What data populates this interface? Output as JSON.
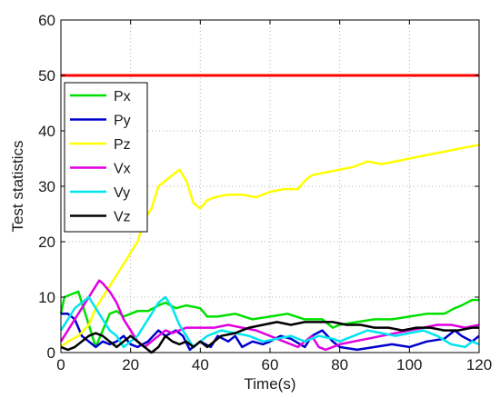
{
  "chart_data": {
    "type": "line",
    "title": "",
    "xlabel": "Time(s)",
    "ylabel": "Test statistics",
    "xlim": [
      0,
      120
    ],
    "ylim": [
      0,
      60
    ],
    "xticks": [
      "0",
      "20",
      "40",
      "60",
      "80",
      "100",
      "120"
    ],
    "yticks": [
      "0",
      "10",
      "20",
      "30",
      "40",
      "50",
      "60"
    ],
    "grid": true,
    "legend_position": "middle-left",
    "threshold": {
      "y": 50,
      "color": "#ff0000"
    },
    "series": [
      {
        "name": "Px",
        "color": "#00e000",
        "points": [
          [
            0,
            7
          ],
          [
            1,
            10
          ],
          [
            3,
            10.5
          ],
          [
            5,
            11
          ],
          [
            6,
            9
          ],
          [
            8,
            5
          ],
          [
            10,
            1
          ],
          [
            12,
            4
          ],
          [
            14,
            7
          ],
          [
            16,
            7.5
          ],
          [
            18,
            6.5
          ],
          [
            20,
            7
          ],
          [
            22,
            7.5
          ],
          [
            25,
            7.5
          ],
          [
            28,
            8.5
          ],
          [
            30,
            9
          ],
          [
            33,
            8
          ],
          [
            36,
            8.5
          ],
          [
            40,
            8
          ],
          [
            42,
            6.5
          ],
          [
            45,
            6.5
          ],
          [
            50,
            7
          ],
          [
            55,
            6
          ],
          [
            60,
            6.5
          ],
          [
            65,
            7
          ],
          [
            70,
            6
          ],
          [
            75,
            6
          ],
          [
            78,
            4.5
          ],
          [
            80,
            5
          ],
          [
            85,
            5.5
          ],
          [
            90,
            6
          ],
          [
            95,
            6
          ],
          [
            100,
            6.5
          ],
          [
            105,
            7
          ],
          [
            110,
            7
          ],
          [
            113,
            8
          ],
          [
            115,
            8.5
          ],
          [
            118,
            9.5
          ],
          [
            120,
            9.5
          ]
        ]
      },
      {
        "name": "Py",
        "color": "#0000cd",
        "points": [
          [
            0,
            7
          ],
          [
            2,
            7
          ],
          [
            4,
            6
          ],
          [
            6,
            3
          ],
          [
            8,
            2
          ],
          [
            10,
            1
          ],
          [
            12,
            2
          ],
          [
            14,
            1.5
          ],
          [
            16,
            2
          ],
          [
            18,
            3
          ],
          [
            20,
            1.5
          ],
          [
            22,
            1
          ],
          [
            25,
            2
          ],
          [
            28,
            4
          ],
          [
            30,
            3
          ],
          [
            33,
            4
          ],
          [
            35,
            3
          ],
          [
            37,
            0.5
          ],
          [
            40,
            2
          ],
          [
            43,
            1
          ],
          [
            45,
            3
          ],
          [
            48,
            2
          ],
          [
            50,
            3
          ],
          [
            52,
            1
          ],
          [
            55,
            2
          ],
          [
            58,
            1.5
          ],
          [
            60,
            2
          ],
          [
            63,
            3
          ],
          [
            66,
            2.5
          ],
          [
            70,
            1
          ],
          [
            72,
            3
          ],
          [
            75,
            4
          ],
          [
            78,
            2
          ],
          [
            80,
            1
          ],
          [
            85,
            0.5
          ],
          [
            90,
            1
          ],
          [
            95,
            1.5
          ],
          [
            100,
            1
          ],
          [
            105,
            2
          ],
          [
            110,
            2.5
          ],
          [
            113,
            4
          ],
          [
            115,
            3
          ],
          [
            118,
            2
          ],
          [
            120,
            3
          ]
        ]
      },
      {
        "name": "Pz",
        "color": "#ffff00",
        "points": [
          [
            0,
            1
          ],
          [
            2,
            2
          ],
          [
            5,
            3
          ],
          [
            8,
            5
          ],
          [
            10,
            8
          ],
          [
            12,
            10
          ],
          [
            14,
            12
          ],
          [
            16,
            14
          ],
          [
            18,
            16
          ],
          [
            20,
            18
          ],
          [
            22,
            20
          ],
          [
            24,
            24
          ],
          [
            26,
            26
          ],
          [
            28,
            30
          ],
          [
            30,
            31
          ],
          [
            32,
            32
          ],
          [
            34,
            33
          ],
          [
            36,
            31
          ],
          [
            38,
            27
          ],
          [
            40,
            26
          ],
          [
            42,
            27.5
          ],
          [
            44,
            28
          ],
          [
            48,
            28.5
          ],
          [
            52,
            28.5
          ],
          [
            56,
            28
          ],
          [
            60,
            29
          ],
          [
            64,
            29.5
          ],
          [
            68,
            29.5
          ],
          [
            70,
            31
          ],
          [
            72,
            32
          ],
          [
            76,
            32.5
          ],
          [
            80,
            33
          ],
          [
            84,
            33.5
          ],
          [
            86,
            34
          ],
          [
            88,
            34.5
          ],
          [
            92,
            34
          ],
          [
            96,
            34.5
          ],
          [
            100,
            35
          ],
          [
            104,
            35.5
          ],
          [
            108,
            36
          ],
          [
            112,
            36.5
          ],
          [
            116,
            37
          ],
          [
            120,
            37.5
          ]
        ]
      },
      {
        "name": "Vx",
        "color": "#e000e0",
        "points": [
          [
            0,
            2
          ],
          [
            2,
            4
          ],
          [
            4,
            6
          ],
          [
            6,
            8
          ],
          [
            8,
            10
          ],
          [
            10,
            12
          ],
          [
            11,
            13
          ],
          [
            12,
            12.5
          ],
          [
            14,
            11
          ],
          [
            16,
            9
          ],
          [
            18,
            6
          ],
          [
            20,
            4
          ],
          [
            22,
            2
          ],
          [
            24,
            1
          ],
          [
            26,
            2
          ],
          [
            28,
            3
          ],
          [
            30,
            4
          ],
          [
            32,
            3.5
          ],
          [
            34,
            4
          ],
          [
            36,
            4.5
          ],
          [
            40,
            4.5
          ],
          [
            44,
            4.5
          ],
          [
            48,
            5
          ],
          [
            52,
            4.5
          ],
          [
            56,
            4
          ],
          [
            60,
            3
          ],
          [
            64,
            2
          ],
          [
            68,
            1
          ],
          [
            70,
            2
          ],
          [
            72,
            3
          ],
          [
            74,
            1
          ],
          [
            76,
            0.5
          ],
          [
            78,
            1
          ],
          [
            80,
            1.5
          ],
          [
            84,
            2
          ],
          [
            88,
            2.5
          ],
          [
            92,
            3
          ],
          [
            96,
            3.5
          ],
          [
            100,
            4
          ],
          [
            104,
            4.5
          ],
          [
            108,
            5
          ],
          [
            112,
            5
          ],
          [
            116,
            4.5
          ],
          [
            120,
            5
          ]
        ]
      },
      {
        "name": "Vy",
        "color": "#00e5ee",
        "points": [
          [
            0,
            4
          ],
          [
            2,
            6
          ],
          [
            4,
            8
          ],
          [
            6,
            9
          ],
          [
            8,
            10
          ],
          [
            10,
            8
          ],
          [
            12,
            6
          ],
          [
            14,
            4
          ],
          [
            16,
            3
          ],
          [
            18,
            1
          ],
          [
            20,
            2
          ],
          [
            22,
            3
          ],
          [
            24,
            5
          ],
          [
            26,
            7
          ],
          [
            28,
            9
          ],
          [
            30,
            10
          ],
          [
            32,
            8
          ],
          [
            34,
            5
          ],
          [
            36,
            3
          ],
          [
            38,
            1
          ],
          [
            40,
            2
          ],
          [
            42,
            3
          ],
          [
            46,
            4
          ],
          [
            50,
            3.5
          ],
          [
            54,
            3
          ],
          [
            58,
            2
          ],
          [
            62,
            2.5
          ],
          [
            66,
            3
          ],
          [
            70,
            2
          ],
          [
            74,
            3
          ],
          [
            78,
            2.5
          ],
          [
            80,
            2
          ],
          [
            84,
            3
          ],
          [
            88,
            4
          ],
          [
            92,
            3.5
          ],
          [
            96,
            3
          ],
          [
            100,
            3.5
          ],
          [
            104,
            4
          ],
          [
            108,
            3
          ],
          [
            112,
            1.5
          ],
          [
            116,
            1
          ],
          [
            118,
            2
          ],
          [
            120,
            1.5
          ]
        ]
      },
      {
        "name": "Vz",
        "color": "#000000",
        "points": [
          [
            0,
            1
          ],
          [
            2,
            0.5
          ],
          [
            4,
            1
          ],
          [
            6,
            2
          ],
          [
            8,
            3
          ],
          [
            10,
            3.5
          ],
          [
            12,
            3
          ],
          [
            14,
            2
          ],
          [
            16,
            1
          ],
          [
            18,
            2
          ],
          [
            20,
            3
          ],
          [
            22,
            2
          ],
          [
            24,
            1
          ],
          [
            26,
            0
          ],
          [
            28,
            1
          ],
          [
            30,
            3
          ],
          [
            32,
            2
          ],
          [
            34,
            1.5
          ],
          [
            36,
            2
          ],
          [
            38,
            1
          ],
          [
            40,
            2
          ],
          [
            42,
            1
          ],
          [
            44,
            2
          ],
          [
            46,
            3
          ],
          [
            50,
            3.5
          ],
          [
            54,
            4.5
          ],
          [
            58,
            5
          ],
          [
            62,
            5.5
          ],
          [
            66,
            5
          ],
          [
            70,
            5.5
          ],
          [
            74,
            5.5
          ],
          [
            78,
            5.5
          ],
          [
            82,
            5
          ],
          [
            86,
            5
          ],
          [
            90,
            4.5
          ],
          [
            94,
            4.5
          ],
          [
            98,
            4
          ],
          [
            102,
            4.5
          ],
          [
            106,
            4.5
          ],
          [
            110,
            4
          ],
          [
            114,
            4
          ],
          [
            118,
            4.5
          ],
          [
            120,
            4.5
          ]
        ]
      }
    ]
  }
}
